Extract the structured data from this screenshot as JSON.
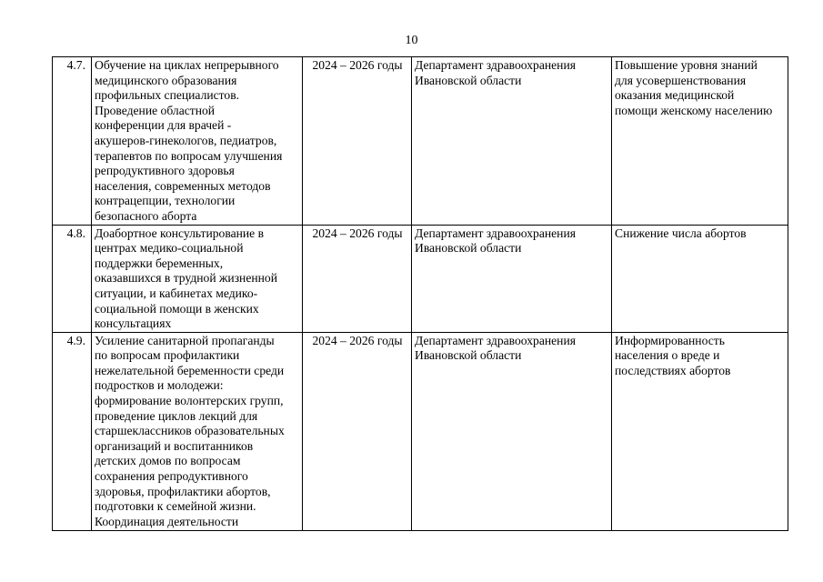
{
  "page_number": "10",
  "rows": [
    {
      "number": "4.7.",
      "activity": [
        "Обучение на циклах непрерывного",
        "медицинского образования",
        "профильных специалистов.",
        "Проведение областной",
        "конференции для врачей -",
        "акушеров-гинекологов, педиатров,",
        "терапевтов по вопросам улучшения",
        "репродуктивного здоровья",
        "населения, современных методов",
        "контрацепции, технологии",
        "безопасного аборта"
      ],
      "period": [
        "2024 – 2026 годы"
      ],
      "executor": [
        "Департамент здравоохранения",
        "Ивановской области"
      ],
      "result": [
        "Повышение уровня знаний",
        "для усовершенствования",
        "оказания медицинской",
        "помощи женскому населению"
      ]
    },
    {
      "number": "4.8.",
      "activity": [
        "Доабортное консультирование в",
        "центрах медико-социальной",
        "поддержки беременных,",
        "оказавшихся в трудной жизненной",
        "ситуации, и кабинетах медико-",
        "социальной помощи в женских",
        "консультациях"
      ],
      "period": [
        "2024 – 2026 годы"
      ],
      "executor": [
        "Департамент здравоохранения",
        "Ивановской области"
      ],
      "result": [
        "Снижение числа абортов"
      ]
    },
    {
      "number": "4.9.",
      "activity": [
        "Усиление санитарной пропаганды",
        "по вопросам профилактики",
        "нежелательной беременности среди",
        "подростков и молодежи:",
        "формирование волонтерских групп,",
        "проведение циклов лекций для",
        "старшеклассников образовательных",
        "организаций и воспитанников",
        "детских домов по вопросам",
        "сохранения репродуктивного",
        "здоровья, профилактики абортов,",
        "подготовки к семейной жизни.",
        "Координация деятельности"
      ],
      "period": [
        "2024 – 2026 годы"
      ],
      "executor": [
        "Департамент здравоохранения",
        "Ивановской области"
      ],
      "result": [
        "Информированность",
        "населения о вреде и",
        "последствиях абортов"
      ]
    }
  ]
}
